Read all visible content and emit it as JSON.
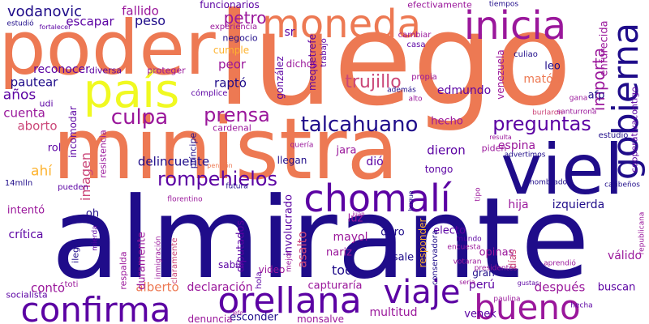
{
  "palette": [
    "#1f0c8a",
    "#5b02a3",
    "#9a179b",
    "#cb4778",
    "#ed7953",
    "#fdb32f",
    "#f0f921"
  ],
  "words": [
    {
      "text": "luego",
      "color": "#ed7953"
    },
    {
      "text": "almirante",
      "color": "#1f0c8a"
    },
    {
      "text": "ministra",
      "color": "#ed7953"
    },
    {
      "text": "poder",
      "color": "#ed7953"
    },
    {
      "text": "viel",
      "color": "#1f0c8a"
    },
    {
      "text": "país",
      "color": "#f0f921"
    },
    {
      "text": "moneda",
      "color": "#ed7953"
    },
    {
      "text": "inicia",
      "color": "#9a179b"
    },
    {
      "text": "gobierna",
      "color": "#1f0c8a"
    },
    {
      "text": "chomalí",
      "color": "#5b02a3"
    },
    {
      "text": "confirma",
      "color": "#5b02a3"
    },
    {
      "text": "orellana",
      "color": "#5b02a3"
    },
    {
      "text": "viaje",
      "color": "#5b02a3"
    },
    {
      "text": "bueno",
      "color": "#9a179b"
    },
    {
      "text": "talcahuano",
      "color": "#1f0c8a"
    },
    {
      "text": "culpa",
      "color": "#9a179b"
    },
    {
      "text": "prensa",
      "color": "#9a179b"
    },
    {
      "text": "rompehielos",
      "color": "#5b02a3"
    },
    {
      "text": "preguntas",
      "color": "#5b02a3"
    },
    {
      "text": "trujillo",
      "color": "#cb4778"
    },
    {
      "text": "petro",
      "color": "#9a179b"
    },
    {
      "text": "vodanovic",
      "color": "#1f0c8a"
    },
    {
      "text": "escapar",
      "color": "#5b02a3"
    },
    {
      "text": "fallido",
      "color": "#9a179b"
    },
    {
      "text": "peso",
      "color": "#1f0c8a"
    },
    {
      "text": "funcionarios",
      "color": "#5b02a3"
    },
    {
      "text": "efectivamente",
      "color": "#9a179b"
    },
    {
      "text": "enfurecida",
      "color": "#9a179b"
    },
    {
      "text": "importa",
      "color": "#9a179b"
    },
    {
      "text": "reconocer",
      "color": "#5b02a3"
    },
    {
      "text": "diversa",
      "color": "#5b02a3"
    },
    {
      "text": "pautear",
      "color": "#1f0c8a"
    },
    {
      "text": "años",
      "color": "#5b02a3"
    },
    {
      "text": "cuenta",
      "color": "#9a179b"
    },
    {
      "text": "aborto",
      "color": "#cb4778"
    },
    {
      "text": "raptó",
      "color": "#1f0c8a"
    },
    {
      "text": "peor",
      "color": "#9a179b"
    },
    {
      "text": "cumple",
      "color": "#fdb32f"
    },
    {
      "text": "edmundo",
      "color": "#5b02a3"
    },
    {
      "text": "matón",
      "color": "#ed7953"
    },
    {
      "text": "leo",
      "color": "#1f0c8a"
    },
    {
      "text": "afp",
      "color": "#1f0c8a"
    },
    {
      "text": "hecho",
      "color": "#9a179b"
    },
    {
      "text": "dieron",
      "color": "#5b02a3"
    },
    {
      "text": "espina",
      "color": "#9a179b"
    },
    {
      "text": "piden",
      "color": "#9a179b"
    },
    {
      "text": "dió",
      "color": "#5b02a3"
    },
    {
      "text": "jara",
      "color": "#9a179b"
    },
    {
      "text": "tongo",
      "color": "#5b02a3"
    },
    {
      "text": "delincuente",
      "color": "#1f0c8a"
    },
    {
      "text": "ahí",
      "color": "#fdb32f"
    },
    {
      "text": "izquierda",
      "color": "#1f0c8a"
    },
    {
      "text": "hija",
      "color": "#9a179b"
    },
    {
      "text": "oh",
      "color": "#1f0c8a"
    },
    {
      "text": "imagen",
      "color": "#cb4778"
    },
    {
      "text": "respalda",
      "color": "#9a179b"
    },
    {
      "text": "crítica",
      "color": "#5b02a3"
    },
    {
      "text": "intentó",
      "color": "#9a179b"
    },
    {
      "text": "pueden",
      "color": "#5b02a3"
    },
    {
      "text": "asalto",
      "color": "#cb4778"
    },
    {
      "text": "luz",
      "color": "#9a179b"
    },
    {
      "text": "mayol",
      "color": "#9a179b"
    },
    {
      "text": "nariz",
      "color": "#9a179b"
    },
    {
      "text": "toda",
      "color": "#1f0c8a"
    },
    {
      "text": "sale",
      "color": "#1f0c8a"
    },
    {
      "text": "electo",
      "color": "#5b02a3"
    },
    {
      "text": "duro",
      "color": "#1f0c8a"
    },
    {
      "text": "opinas",
      "color": "#9a179b"
    },
    {
      "text": "válido",
      "color": "#9a179b"
    },
    {
      "text": "después",
      "color": "#9a179b"
    },
    {
      "text": "buscan",
      "color": "#5b02a3"
    },
    {
      "text": "perú",
      "color": "#5b02a3"
    },
    {
      "text": "gran",
      "color": "#1f0c8a"
    },
    {
      "text": "venek",
      "color": "#5b02a3"
    },
    {
      "text": "multitud",
      "color": "#9a179b"
    },
    {
      "text": "esconder",
      "color": "#1f0c8a"
    },
    {
      "text": "monsalve",
      "color": "#9a179b"
    },
    {
      "text": "denuncia",
      "color": "#9a179b"
    },
    {
      "text": "contó",
      "color": "#9a179b"
    },
    {
      "text": "alberto",
      "color": "#ed7953"
    },
    {
      "text": "declaración",
      "color": "#9a179b"
    },
    {
      "text": "capturaría",
      "color": "#9a179b"
    },
    {
      "text": "socialista",
      "color": "#5b02a3"
    },
    {
      "text": "diputados",
      "color": "#5b02a3"
    },
    {
      "text": "sabía",
      "color": "#5b02a3"
    },
    {
      "text": "video",
      "color": "#9a179b"
    },
    {
      "text": "duramente",
      "color": "#9a179b"
    },
    {
      "text": "involucrado",
      "color": "#5b02a3"
    },
    {
      "text": "incomodar",
      "color": "#5b02a3"
    },
    {
      "text": "rol",
      "color": "#5b02a3"
    },
    {
      "text": "udi",
      "color": "#5b02a3"
    },
    {
      "text": "estudió",
      "color": "#1f0c8a"
    },
    {
      "text": "sr",
      "color": "#5b02a3"
    },
    {
      "text": "dichos",
      "color": "#9a179b"
    },
    {
      "text": "cómplice",
      "color": "#5b02a3"
    },
    {
      "text": "proteger",
      "color": "#9a179b"
    },
    {
      "text": "negocio",
      "color": "#1f0c8a"
    },
    {
      "text": "experiencia",
      "color": "#9a179b"
    },
    {
      "text": "trabajo",
      "color": "#5b02a3"
    },
    {
      "text": "mequetrefe",
      "color": "#5b02a3"
    },
    {
      "text": "gonzález",
      "color": "#5b02a3"
    },
    {
      "text": "cardenal",
      "color": "#9a179b"
    },
    {
      "text": "príncipe",
      "color": "#1f0c8a"
    },
    {
      "text": "resistencia",
      "color": "#9a179b"
    },
    {
      "text": "llegan",
      "color": "#1f0c8a"
    },
    {
      "text": "quería",
      "color": "#9a179b"
    },
    {
      "text": "tiempos",
      "color": "#1f0c8a"
    },
    {
      "text": "cambiar",
      "color": "#9a179b"
    },
    {
      "text": "casa",
      "color": "#5b02a3"
    },
    {
      "text": "propia",
      "color": "#9a179b"
    },
    {
      "text": "venezuela",
      "color": "#9a179b"
    },
    {
      "text": "culiao",
      "color": "#1f0c8a"
    },
    {
      "text": "además",
      "color": "#1f0c8a"
    },
    {
      "text": "alto",
      "color": "#9a179b"
    },
    {
      "text": "gana",
      "color": "#9a179b"
    },
    {
      "text": "burlaron",
      "color": "#cb4778"
    },
    {
      "text": "santurrona",
      "color": "#9a179b"
    },
    {
      "text": "cooperativacontigo",
      "color": "#5b02a3"
    },
    {
      "text": "estudio",
      "color": "#1f0c8a"
    },
    {
      "text": "resulta",
      "color": "#9a179b"
    },
    {
      "text": "advertimos",
      "color": "#1f0c8a"
    },
    {
      "text": "nombrado",
      "color": "#1f0c8a"
    },
    {
      "text": "caribeños",
      "color": "#1f0c8a"
    },
    {
      "text": "republicana",
      "color": "#9a179b"
    },
    {
      "text": "aprendió",
      "color": "#9a179b"
    },
    {
      "text": "votaran",
      "color": "#9a179b"
    },
    {
      "text": "presidentes",
      "color": "#9a179b"
    },
    {
      "text": "encuesta",
      "color": "#9a179b"
    },
    {
      "text": "mundo",
      "color": "#5b02a3"
    },
    {
      "text": "responder",
      "color": "#fdb32f"
    },
    {
      "text": "días",
      "color": "#cb4778"
    },
    {
      "text": "conservadora",
      "color": "#1f0c8a"
    },
    {
      "text": "paulina",
      "color": "#9a179b"
    },
    {
      "text": "hecha",
      "color": "#5b02a3"
    },
    {
      "text": "ilegal",
      "color": "#1f0c8a"
    },
    {
      "text": "mierda",
      "color": "#5b02a3"
    },
    {
      "text": "inmigración",
      "color": "#9a179b"
    },
    {
      "text": "claramente",
      "color": "#cb4778"
    },
    {
      "text": "florentino",
      "color": "#9a179b"
    },
    {
      "text": "hola",
      "color": "#5b02a3"
    },
    {
      "text": "mejor",
      "color": "#9a179b"
    },
    {
      "text": "futura",
      "color": "#1f0c8a"
    },
    {
      "text": "pensión",
      "color": "#ed7953"
    },
    {
      "text": "toti",
      "color": "#9a179b"
    },
    {
      "text": "14mlln",
      "color": "#1f0c8a"
    },
    {
      "text": "fortalecer",
      "color": "#5b02a3"
    },
    {
      "text": "gustas",
      "color": "#5b02a3"
    },
    {
      "text": "buque",
      "color": "#1f0c8a"
    },
    {
      "text": "tipo",
      "color": "#9a179b"
    },
    {
      "text": "seria",
      "color": "#9a179b"
    },
    {
      "text": "juan",
      "color": "#9a179b"
    },
    {
      "text": "jefe",
      "color": "#9a179b"
    }
  ]
}
